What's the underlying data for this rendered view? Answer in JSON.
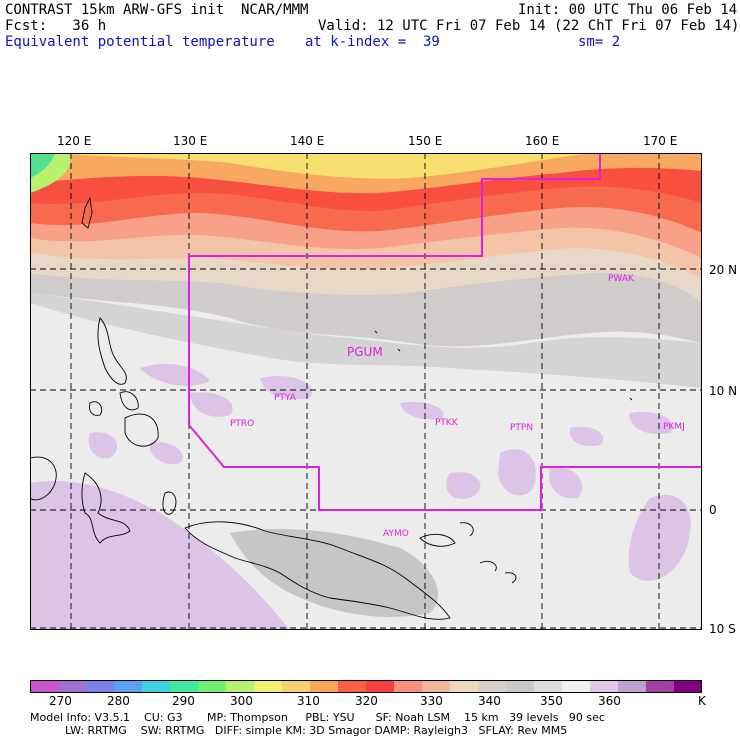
{
  "header": {
    "left1": "CONTRAST 15km ARW-GFS init  NCAR/MMM",
    "left2": "Fcst:   36 h",
    "left3": "Equivalent potential temperature",
    "right1": "Init: 00 UTC Thu 06 Feb 14",
    "right2": "Valid: 12 UTC Fri 07 Feb 14 (22 ChT Fri 07 Feb 14)",
    "mid3": "at k-index =  39",
    "right3": "sm= 2"
  },
  "axes": {
    "lon_labels": [
      "120 E",
      "130 E",
      "140 E",
      "150 E",
      "160 E",
      "170 E"
    ],
    "lat_labels": [
      "20 N",
      "10 N",
      "0",
      "10 S"
    ]
  },
  "stations": [
    "PWAK",
    "PGUM",
    "PTYA",
    "PTRO",
    "PTKK",
    "PTPN",
    "PKMJ",
    "AYMO"
  ],
  "colorbar": {
    "labels": [
      "270",
      "280",
      "290",
      "300",
      "310",
      "320",
      "330",
      "340",
      "350",
      "360",
      "K"
    ],
    "colors": [
      "#cc55cc",
      "#a070d0",
      "#7f7fe8",
      "#5aa0f0",
      "#3fd0e0",
      "#40e8a0",
      "#70f070",
      "#b8f070",
      "#f0f070",
      "#f8d070",
      "#f8a858",
      "#f86048",
      "#f84040",
      "#f89080",
      "#f0b898",
      "#f0d8c0",
      "#d8cfc8",
      "#c8c8c8",
      "#dcdcdc",
      "#f0f0f0",
      "#e0c8e8",
      "#c0a0d0",
      "#a040a0",
      "#800080"
    ],
    "unit": "K"
  },
  "footer": {
    "line1": "Model Info: V3.5.1    CU: G3       MP: Thompson     PBL: YSU      SF: Noah LSM    15 km   39 levels   90 sec",
    "line2": "          LW: RRTMG    SW: RRTMG   DIFF: simple KM: 3D Smagor DAMP: Rayleigh3   SFLAY: Rev MM5"
  }
}
